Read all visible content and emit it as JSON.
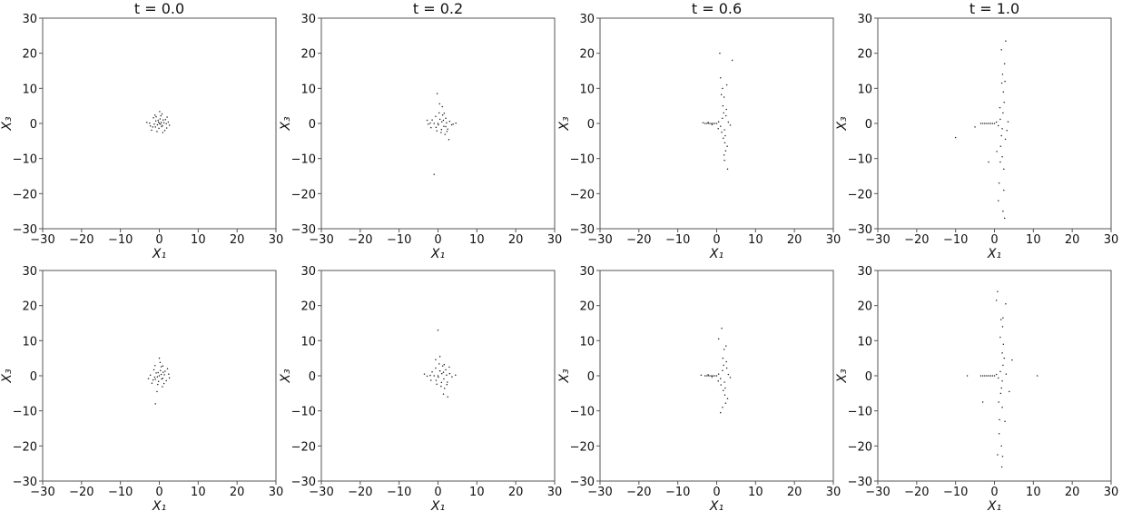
{
  "chart_data": [
    {
      "type": "scatter",
      "title": "t = 0.0",
      "xlabel": "X₁",
      "ylabel": "X₃",
      "xlim": [
        -30,
        30
      ],
      "ylim": [
        -30,
        30
      ],
      "xticks": [
        -30,
        -20,
        -10,
        0,
        10,
        20,
        30
      ],
      "yticks": [
        -30,
        -20,
        -10,
        0,
        10,
        20,
        30
      ],
      "grid": false,
      "points": [
        [
          0,
          0
        ],
        [
          0.5,
          0.3
        ],
        [
          -0.5,
          -0.4
        ],
        [
          0.8,
          -0.6
        ],
        [
          -0.9,
          0.7
        ],
        [
          1.2,
          0.2
        ],
        [
          -1.3,
          -0.2
        ],
        [
          0.2,
          1.3
        ],
        [
          -0.1,
          -1.4
        ],
        [
          1.6,
          1.1
        ],
        [
          -1.7,
          -1.0
        ],
        [
          1.9,
          -1.3
        ],
        [
          -1.5,
          1.6
        ],
        [
          0.4,
          2.2
        ],
        [
          -0.6,
          -2.3
        ],
        [
          2.3,
          0.4
        ],
        [
          -2.5,
          0.1
        ],
        [
          0.1,
          3.4
        ],
        [
          0.9,
          -2.6
        ],
        [
          -1.1,
          2.4
        ],
        [
          2.0,
          1.8
        ],
        [
          -2.0,
          -1.9
        ],
        [
          1.4,
          -2.0
        ],
        [
          -3.2,
          0.3
        ],
        [
          0.6,
          -0.9
        ],
        [
          -0.3,
          0.9
        ],
        [
          1.0,
          1.0
        ],
        [
          -1.0,
          -1.0
        ],
        [
          0.3,
          -0.2
        ],
        [
          -0.2,
          0.4
        ],
        [
          2.6,
          -0.5
        ],
        [
          -0.8,
          1.9
        ],
        [
          0.7,
          2.7
        ],
        [
          -2.3,
          -0.7
        ],
        [
          1.8,
          -0.1
        ]
      ]
    },
    {
      "type": "scatter",
      "title": "t = 0.2",
      "xlabel": "X₁",
      "ylabel": "X₃",
      "xlim": [
        -30,
        30
      ],
      "ylim": [
        -30,
        30
      ],
      "xticks": [
        -30,
        -20,
        -10,
        0,
        10,
        20,
        30
      ],
      "yticks": [
        -30,
        -20,
        -10,
        0,
        10,
        20,
        30
      ],
      "grid": false,
      "points": [
        [
          0,
          0
        ],
        [
          -1,
          0
        ],
        [
          -2,
          0.1
        ],
        [
          -2.5,
          -0.2
        ],
        [
          1,
          0.5
        ],
        [
          1.5,
          -0.8
        ],
        [
          0.5,
          1.2
        ],
        [
          -0.5,
          -1.1
        ],
        [
          2,
          1.5
        ],
        [
          2.5,
          -1.6
        ],
        [
          1.2,
          2.4
        ],
        [
          0.8,
          -2.6
        ],
        [
          3,
          0.6
        ],
        [
          3.5,
          -0.4
        ],
        [
          1.8,
          -3.1
        ],
        [
          0.3,
          3.0
        ],
        [
          -1.5,
          1.0
        ],
        [
          -1.8,
          -1.2
        ],
        [
          2.2,
          0.2
        ],
        [
          0.1,
          -0.4
        ],
        [
          1.1,
          4.8
        ],
        [
          0.4,
          5.6
        ],
        [
          -0.2,
          8.5
        ],
        [
          -1.0,
          -14.5
        ],
        [
          2.8,
          -4.6
        ],
        [
          3.9,
          -0.2
        ],
        [
          -2.8,
          0.9
        ],
        [
          1.6,
          2.9
        ],
        [
          2.3,
          -2.3
        ],
        [
          -0.6,
          2.0
        ],
        [
          0.9,
          -1.7
        ],
        [
          1.4,
          0.9
        ],
        [
          -0.3,
          -2.1
        ],
        [
          4.6,
          0.1
        ],
        [
          2.0,
          -0.9
        ]
      ]
    },
    {
      "type": "scatter",
      "title": "t = 0.6",
      "xlabel": "X₁",
      "ylabel": "X₃",
      "xlim": [
        -30,
        30
      ],
      "ylim": [
        -30,
        30
      ],
      "xticks": [
        -30,
        -20,
        -10,
        0,
        10,
        20,
        30
      ],
      "yticks": [
        -30,
        -20,
        -10,
        0,
        10,
        20,
        30
      ],
      "grid": false,
      "points": [
        [
          -3,
          0
        ],
        [
          -2.5,
          0
        ],
        [
          -2,
          0
        ],
        [
          -1.5,
          0
        ],
        [
          -1,
          0
        ],
        [
          -0.5,
          0
        ],
        [
          0,
          0
        ],
        [
          -2.2,
          0.3
        ],
        [
          -1.2,
          -0.3
        ],
        [
          0.5,
          0.5
        ],
        [
          1,
          -0.8
        ],
        [
          1.5,
          1.5
        ],
        [
          2,
          -1.8
        ],
        [
          1.8,
          3
        ],
        [
          2.2,
          -3.5
        ],
        [
          1.6,
          5
        ],
        [
          2.1,
          -5.5
        ],
        [
          1.9,
          7.5
        ],
        [
          2.3,
          -7.8
        ],
        [
          1.5,
          10
        ],
        [
          2.0,
          -10.5
        ],
        [
          2.6,
          11
        ],
        [
          2.8,
          -13
        ],
        [
          1.0,
          13
        ],
        [
          0.8,
          20
        ],
        [
          4,
          18
        ],
        [
          2.4,
          2.2
        ],
        [
          1.3,
          -2.5
        ],
        [
          3,
          0.4
        ],
        [
          3.5,
          -0.5
        ],
        [
          -3.5,
          0.2
        ],
        [
          2.5,
          4
        ],
        [
          1.7,
          -4.2
        ],
        [
          0.4,
          -1.5
        ],
        [
          2.7,
          -6.5
        ],
        [
          1.2,
          8.2
        ],
        [
          1.9,
          -9
        ]
      ]
    },
    {
      "type": "scatter",
      "title": "t = 1.0",
      "xlabel": "X₁",
      "ylabel": "X₃",
      "xlim": [
        -30,
        30
      ],
      "ylim": [
        -30,
        30
      ],
      "xticks": [
        -30,
        -20,
        -10,
        0,
        10,
        20,
        30
      ],
      "yticks": [
        -30,
        -20,
        -10,
        0,
        10,
        20,
        30
      ],
      "grid": false,
      "points": [
        [
          -3.5,
          0
        ],
        [
          -3,
          0
        ],
        [
          -2.5,
          0
        ],
        [
          -2,
          0
        ],
        [
          -1.5,
          0
        ],
        [
          -1,
          0
        ],
        [
          -0.5,
          0
        ],
        [
          0,
          0
        ],
        [
          0.5,
          0.4
        ],
        [
          1,
          -0.6
        ],
        [
          1.5,
          1.2
        ],
        [
          2,
          -1.5
        ],
        [
          2.2,
          3
        ],
        [
          1.8,
          -3.5
        ],
        [
          2.5,
          6
        ],
        [
          1.6,
          -6.5
        ],
        [
          2.3,
          9
        ],
        [
          2.0,
          -9.5
        ],
        [
          2.7,
          12
        ],
        [
          1.5,
          -11
        ],
        [
          2.1,
          14
        ],
        [
          2.4,
          -13
        ],
        [
          2.6,
          17
        ],
        [
          1.2,
          -17
        ],
        [
          1.8,
          21
        ],
        [
          2.9,
          23.5
        ],
        [
          1.0,
          -22
        ],
        [
          2.2,
          -25
        ],
        [
          2.6,
          -27
        ],
        [
          -1.5,
          -11
        ],
        [
          -10,
          -4
        ],
        [
          -5,
          -1
        ],
        [
          3.2,
          -2
        ],
        [
          3.5,
          0.5
        ],
        [
          1.4,
          4.5
        ],
        [
          2.8,
          -4.5
        ],
        [
          0.6,
          -8
        ],
        [
          1.9,
          11.5
        ],
        [
          2.4,
          -19
        ]
      ]
    },
    {
      "type": "scatter",
      "title": "",
      "xlabel": "X₁",
      "ylabel": "X₃",
      "xlim": [
        -30,
        30
      ],
      "ylim": [
        -30,
        30
      ],
      "xticks": [
        -30,
        -20,
        -10,
        0,
        10,
        20,
        30
      ],
      "yticks": [
        -30,
        -20,
        -10,
        0,
        10,
        20,
        30
      ],
      "grid": false,
      "points": [
        [
          0,
          0
        ],
        [
          0.5,
          0.4
        ],
        [
          -0.5,
          -0.3
        ],
        [
          0.9,
          -0.7
        ],
        [
          -0.8,
          0.8
        ],
        [
          1.3,
          0.3
        ],
        [
          -1.2,
          -0.4
        ],
        [
          0.3,
          1.5
        ],
        [
          -0.2,
          -1.6
        ],
        [
          1.5,
          1.3
        ],
        [
          -1.6,
          -1.2
        ],
        [
          1.8,
          -1.4
        ],
        [
          -1.4,
          1.7
        ],
        [
          0.5,
          2.6
        ],
        [
          -0.4,
          -2.5
        ],
        [
          2.4,
          0.5
        ],
        [
          -2.3,
          0.2
        ],
        [
          0.2,
          3.8
        ],
        [
          0,
          5
        ],
        [
          -1,
          -8
        ],
        [
          0.8,
          -3.1
        ],
        [
          -1.1,
          2.9
        ],
        [
          2.1,
          2.0
        ],
        [
          -1.9,
          -2.1
        ],
        [
          1.2,
          -2.2
        ],
        [
          -2.8,
          -0.8
        ],
        [
          0.6,
          -0.9
        ],
        [
          -0.3,
          0.9
        ],
        [
          1,
          1
        ],
        [
          -1,
          -1
        ],
        [
          2.6,
          -0.6
        ],
        [
          -0.6,
          -4.5
        ],
        [
          0.9,
          2.8
        ]
      ]
    },
    {
      "type": "scatter",
      "title": "",
      "xlabel": "X₁",
      "ylabel": "X₃",
      "xlim": [
        -30,
        30
      ],
      "ylim": [
        -30,
        30
      ],
      "xticks": [
        -30,
        -20,
        -10,
        0,
        10,
        20,
        30
      ],
      "yticks": [
        -30,
        -20,
        -10,
        0,
        10,
        20,
        30
      ],
      "grid": false,
      "points": [
        [
          0,
          0
        ],
        [
          -1,
          0
        ],
        [
          -2,
          0.1
        ],
        [
          -2.8,
          -0.1
        ],
        [
          1,
          0.6
        ],
        [
          1.5,
          -0.9
        ],
        [
          0.5,
          1.4
        ],
        [
          -0.5,
          -1.3
        ],
        [
          2,
          1.7
        ],
        [
          2.4,
          -1.8
        ],
        [
          1.2,
          2.8
        ],
        [
          0.8,
          -3
        ],
        [
          3,
          0.6
        ],
        [
          3.6,
          -0.3
        ],
        [
          1.7,
          -3.6
        ],
        [
          0.3,
          3.4
        ],
        [
          -1.5,
          1.1
        ],
        [
          -1.8,
          -1.3
        ],
        [
          2.2,
          0.2
        ],
        [
          0.1,
          -0.4
        ],
        [
          0,
          13
        ],
        [
          0.5,
          5.5
        ],
        [
          -0.6,
          4.6
        ],
        [
          1.4,
          -5.2
        ],
        [
          2.5,
          -6
        ],
        [
          4.5,
          0.2
        ],
        [
          -3.5,
          0.5
        ],
        [
          1.6,
          3.2
        ],
        [
          2.3,
          -2.5
        ],
        [
          -0.6,
          2.2
        ],
        [
          0.9,
          -1.9
        ],
        [
          1.4,
          1.0
        ],
        [
          -0.3,
          -2.4
        ],
        [
          2.9,
          2.5
        ]
      ]
    },
    {
      "type": "scatter",
      "title": "",
      "xlabel": "X₁",
      "ylabel": "X₃",
      "xlim": [
        -30,
        30
      ],
      "ylim": [
        -30,
        30
      ],
      "xticks": [
        -30,
        -20,
        -10,
        0,
        10,
        20,
        30
      ],
      "yticks": [
        -30,
        -20,
        -10,
        0,
        10,
        20,
        30
      ],
      "grid": false,
      "points": [
        [
          -3,
          0
        ],
        [
          -2.5,
          0
        ],
        [
          -2,
          0
        ],
        [
          -1.5,
          0
        ],
        [
          -1,
          0
        ],
        [
          -0.5,
          0
        ],
        [
          0,
          0
        ],
        [
          -2.2,
          0.3
        ],
        [
          -1.2,
          -0.3
        ],
        [
          0.5,
          0.5
        ],
        [
          1,
          -0.8
        ],
        [
          1.5,
          1.5
        ],
        [
          2,
          -1.8
        ],
        [
          1.8,
          3
        ],
        [
          2.2,
          -3.5
        ],
        [
          1.6,
          5
        ],
        [
          2.1,
          -5.5
        ],
        [
          1.9,
          7.5
        ],
        [
          2.4,
          8.5
        ],
        [
          2.3,
          -7.8
        ],
        [
          1.5,
          -9
        ],
        [
          1.0,
          -10.5
        ],
        [
          1.3,
          13.5
        ],
        [
          0.5,
          10.5
        ],
        [
          2.8,
          -6.5
        ],
        [
          3,
          0.4
        ],
        [
          3.5,
          -0.5
        ],
        [
          -4,
          0.2
        ],
        [
          2.5,
          4
        ],
        [
          1.7,
          -4.2
        ],
        [
          0.4,
          -1.5
        ],
        [
          2.6,
          2.2
        ],
        [
          1.1,
          -2.6
        ]
      ]
    },
    {
      "type": "scatter",
      "title": "",
      "xlabel": "X₁",
      "ylabel": "X₃",
      "xlim": [
        -30,
        30
      ],
      "ylim": [
        -30,
        30
      ],
      "xticks": [
        -30,
        -20,
        -10,
        0,
        10,
        20,
        30
      ],
      "yticks": [
        -30,
        -20,
        -10,
        0,
        10,
        20,
        30
      ],
      "grid": false,
      "points": [
        [
          -3.5,
          0
        ],
        [
          -3,
          0
        ],
        [
          -2.5,
          0
        ],
        [
          -2,
          0
        ],
        [
          -1.5,
          0
        ],
        [
          -1,
          0
        ],
        [
          -0.5,
          0
        ],
        [
          0,
          0
        ],
        [
          0.5,
          0.4
        ],
        [
          1,
          -0.6
        ],
        [
          1.5,
          1.2
        ],
        [
          2,
          -1.5
        ],
        [
          2.2,
          3
        ],
        [
          1.8,
          -3.5
        ],
        [
          2.5,
          5
        ],
        [
          1.6,
          -5
        ],
        [
          2.3,
          9
        ],
        [
          2.0,
          -9
        ],
        [
          1.5,
          11
        ],
        [
          1.3,
          -12.5
        ],
        [
          2.1,
          14
        ],
        [
          2.2,
          16.5
        ],
        [
          1.7,
          16
        ],
        [
          0.5,
          21.5
        ],
        [
          0.8,
          24
        ],
        [
          2.9,
          20.5
        ],
        [
          1.2,
          -16.5
        ],
        [
          1.8,
          -20
        ],
        [
          2.1,
          -23
        ],
        [
          1.9,
          -26
        ],
        [
          0.8,
          -22.5
        ],
        [
          11,
          0
        ],
        [
          -7,
          0
        ],
        [
          -3,
          -7.5
        ],
        [
          4.5,
          4.5
        ],
        [
          3.8,
          -4.5
        ],
        [
          3,
          0.5
        ],
        [
          2.7,
          -13
        ],
        [
          1.1,
          -7.5
        ],
        [
          2.0,
          6.5
        ]
      ]
    }
  ]
}
